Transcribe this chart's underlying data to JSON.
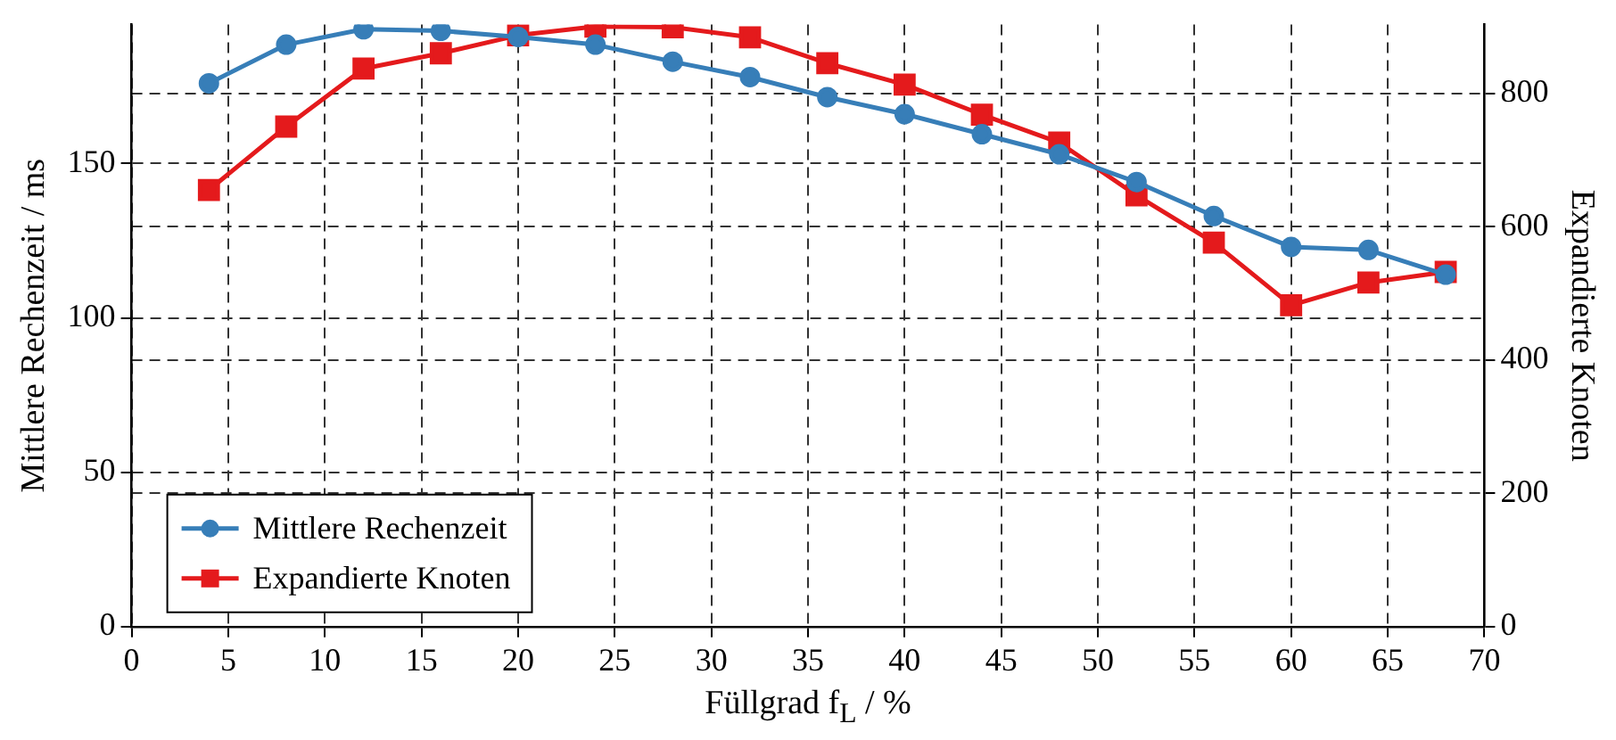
{
  "chart_data": {
    "type": "line",
    "xlabel": "Füllgrad f$_{L}$ / %",
    "ylabel": "Mittlere Rechenzeit / ms",
    "y2label": "Expandierte Knoten",
    "x": [
      4,
      8,
      12,
      16,
      20,
      24,
      28,
      32,
      36,
      40,
      44,
      48,
      52,
      56,
      60,
      64,
      68
    ],
    "series": [
      {
        "name": "Mittlere Rechenzeit",
        "color": "#377eb8",
        "marker": "circle",
        "values": [
          176,
          188.5,
          193.5,
          193,
          191,
          188.5,
          183,
          178,
          171.5,
          166,
          159.5,
          153,
          144,
          133,
          123,
          122,
          114
        ]
      },
      {
        "name": "Expandierte Knoten",
        "color": "#e41a1c",
        "marker": "square",
        "axis": "y2",
        "values": [
          655,
          750,
          837,
          860,
          887,
          900,
          899,
          884,
          845,
          813,
          768,
          726,
          647,
          576,
          482,
          516,
          532
        ]
      }
    ],
    "xlim": [
      0,
      70
    ],
    "xticks": [
      0,
      5,
      10,
      15,
      20,
      25,
      30,
      35,
      40,
      45,
      50,
      55,
      60,
      65,
      70
    ],
    "ylim": [
      0,
      195
    ],
    "yticks": [
      0,
      50,
      100,
      150
    ],
    "y2lim": [
      0,
      903
    ],
    "y2ticks": [
      0,
      200,
      400,
      600,
      800
    ],
    "grid": true,
    "line_style": "solid",
    "legend": "bottom left"
  }
}
